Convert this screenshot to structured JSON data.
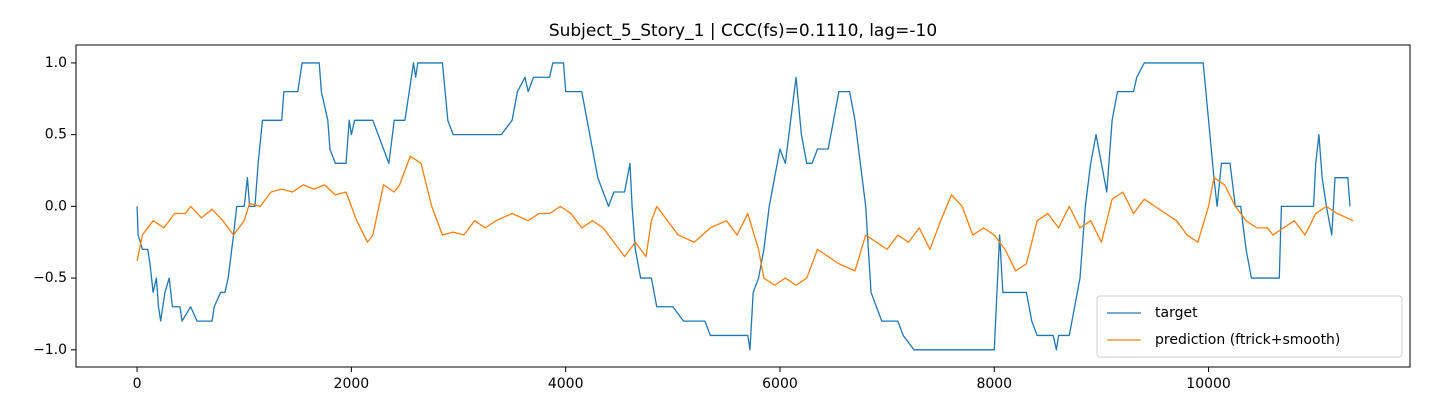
{
  "chart_data": {
    "type": "line",
    "title": "Subject_5_Story_1 | CCC(fs)=0.1110, lag=-10",
    "xlim": [
      -570,
      11880
    ],
    "ylim": [
      -1.12,
      1.125
    ],
    "xticks": [
      0,
      2000,
      4000,
      6000,
      8000,
      10000
    ],
    "yticks": [
      {
        "value": 1.0,
        "label": "1.0"
      },
      {
        "value": 0.5,
        "label": "0.5"
      },
      {
        "value": 0.0,
        "label": "0.0"
      },
      {
        "value": -0.5,
        "label": "−0.5"
      },
      {
        "value": -1.0,
        "label": "−1.0"
      }
    ],
    "legend": "lower right",
    "series": [
      {
        "name": "target",
        "color": "#1f77b4",
        "x": [
          0,
          10,
          50,
          100,
          120,
          150,
          180,
          200,
          220,
          260,
          300,
          330,
          400,
          420,
          500,
          560,
          700,
          720,
          780,
          820,
          850,
          900,
          930,
          1000,
          1030,
          1050,
          1100,
          1130,
          1170,
          1350,
          1370,
          1500,
          1540,
          1700,
          1720,
          1780,
          1800,
          1850,
          1950,
          1980,
          2000,
          2030,
          2200,
          2300,
          2350,
          2400,
          2500,
          2540,
          2580,
          2600,
          2620,
          2850,
          2900,
          2950,
          3400,
          3500,
          3550,
          3620,
          3650,
          3700,
          3850,
          3880,
          3980,
          4000,
          4150,
          4200,
          4250,
          4300,
          4400,
          4450,
          4550,
          4600,
          4620,
          4650,
          4700,
          4800,
          4850,
          5000,
          5100,
          5300,
          5350,
          5700,
          5720,
          5750,
          5800,
          5850,
          5900,
          5950,
          6000,
          6050,
          6100,
          6150,
          6200,
          6250,
          6300,
          6350,
          6450,
          6500,
          6550,
          6650,
          6700,
          6750,
          6800,
          6850,
          6900,
          6950,
          7100,
          7150,
          7250,
          8000,
          8050,
          8080,
          8300,
          8350,
          8400,
          8550,
          8580,
          8600,
          8700,
          8800,
          8850,
          8900,
          8950,
          9000,
          9050,
          9100,
          9150,
          9300,
          9330,
          9400,
          9950,
          10000,
          10050,
          10080,
          10120,
          10200,
          10250,
          10300,
          10350,
          10400,
          10660,
          10680,
          10980,
          11000,
          11030,
          11060,
          11100,
          11150,
          11180,
          11300,
          11320
        ],
        "values": [
          0.0,
          -0.2,
          -0.3,
          -0.3,
          -0.4,
          -0.6,
          -0.5,
          -0.7,
          -0.8,
          -0.6,
          -0.5,
          -0.7,
          -0.7,
          -0.8,
          -0.7,
          -0.8,
          -0.8,
          -0.7,
          -0.6,
          -0.6,
          -0.5,
          -0.2,
          0.0,
          0.0,
          0.2,
          0.0,
          0.0,
          0.3,
          0.6,
          0.6,
          0.8,
          0.8,
          1.0,
          1.0,
          0.8,
          0.6,
          0.4,
          0.3,
          0.3,
          0.6,
          0.5,
          0.6,
          0.6,
          0.4,
          0.3,
          0.6,
          0.6,
          0.8,
          1.0,
          0.9,
          1.0,
          1.0,
          0.6,
          0.5,
          0.5,
          0.6,
          0.8,
          0.9,
          0.8,
          0.9,
          0.9,
          1.0,
          1.0,
          0.8,
          0.8,
          0.6,
          0.4,
          0.2,
          0.0,
          0.1,
          0.1,
          0.3,
          0.0,
          -0.3,
          -0.5,
          -0.5,
          -0.7,
          -0.7,
          -0.8,
          -0.8,
          -0.9,
          -0.9,
          -1.0,
          -0.6,
          -0.5,
          -0.3,
          0.0,
          0.2,
          0.4,
          0.3,
          0.6,
          0.9,
          0.5,
          0.3,
          0.3,
          0.4,
          0.4,
          0.6,
          0.8,
          0.8,
          0.6,
          0.3,
          0.0,
          -0.6,
          -0.7,
          -0.8,
          -0.8,
          -0.9,
          -1.0,
          -1.0,
          -0.2,
          -0.6,
          -0.6,
          -0.8,
          -0.9,
          -0.9,
          -1.0,
          -0.9,
          -0.9,
          -0.5,
          0.0,
          0.3,
          0.5,
          0.3,
          0.1,
          0.6,
          0.8,
          0.8,
          0.9,
          1.0,
          1.0,
          0.6,
          0.2,
          0.0,
          0.3,
          0.3,
          0.0,
          0.0,
          -0.3,
          -0.5,
          -0.5,
          0.0,
          0.0,
          0.3,
          0.5,
          0.2,
          0.0,
          -0.2,
          0.2,
          0.2,
          0.0
        ]
      },
      {
        "name": "prediction (ftrick+smooth)",
        "color": "#ff7f0e",
        "x": [
          0,
          50,
          150,
          250,
          350,
          450,
          500,
          600,
          700,
          800,
          900,
          1000,
          1050,
          1150,
          1250,
          1350,
          1450,
          1550,
          1650,
          1750,
          1850,
          1950,
          2050,
          2150,
          2200,
          2300,
          2400,
          2450,
          2550,
          2650,
          2750,
          2850,
          2950,
          3050,
          3150,
          3250,
          3350,
          3500,
          3650,
          3750,
          3850,
          3950,
          4050,
          4150,
          4250,
          4350,
          4450,
          4550,
          4650,
          4750,
          4800,
          4850,
          4950,
          5050,
          5200,
          5350,
          5500,
          5600,
          5700,
          5800,
          5850,
          5950,
          6050,
          6150,
          6250,
          6350,
          6450,
          6550,
          6700,
          6800,
          6900,
          7000,
          7100,
          7200,
          7300,
          7400,
          7500,
          7600,
          7700,
          7800,
          7900,
          8000,
          8100,
          8200,
          8300,
          8400,
          8500,
          8600,
          8700,
          8800,
          8900,
          9000,
          9100,
          9200,
          9300,
          9400,
          9500,
          9600,
          9700,
          9800,
          9900,
          10000,
          10050,
          10150,
          10250,
          10350,
          10450,
          10550,
          10600,
          10700,
          10800,
          10900,
          11000,
          11100,
          11200,
          11350
        ],
        "values": [
          -0.38,
          -0.2,
          -0.1,
          -0.15,
          -0.05,
          -0.05,
          0.0,
          -0.08,
          -0.02,
          -0.1,
          -0.2,
          -0.1,
          0.02,
          0.0,
          0.1,
          0.12,
          0.1,
          0.15,
          0.12,
          0.15,
          0.08,
          0.1,
          -0.1,
          -0.25,
          -0.2,
          0.15,
          0.1,
          0.15,
          0.35,
          0.3,
          0.0,
          -0.2,
          -0.18,
          -0.2,
          -0.1,
          -0.15,
          -0.1,
          -0.05,
          -0.1,
          -0.05,
          -0.05,
          0.0,
          -0.05,
          -0.15,
          -0.1,
          -0.15,
          -0.25,
          -0.35,
          -0.25,
          -0.35,
          -0.1,
          0.0,
          -0.1,
          -0.2,
          -0.25,
          -0.15,
          -0.1,
          -0.2,
          -0.05,
          -0.3,
          -0.5,
          -0.55,
          -0.5,
          -0.55,
          -0.5,
          -0.3,
          -0.35,
          -0.4,
          -0.45,
          -0.2,
          -0.25,
          -0.3,
          -0.2,
          -0.25,
          -0.15,
          -0.3,
          -0.1,
          0.08,
          0.0,
          -0.2,
          -0.15,
          -0.2,
          -0.3,
          -0.45,
          -0.4,
          -0.1,
          -0.05,
          -0.15,
          0.0,
          -0.15,
          -0.1,
          -0.25,
          0.05,
          0.1,
          -0.05,
          0.05,
          0.0,
          -0.05,
          -0.1,
          -0.2,
          -0.25,
          0.0,
          0.2,
          0.15,
          0.0,
          -0.1,
          -0.15,
          -0.15,
          -0.2,
          -0.15,
          -0.1,
          -0.2,
          -0.05,
          0.0,
          -0.05,
          -0.1
        ]
      }
    ]
  }
}
